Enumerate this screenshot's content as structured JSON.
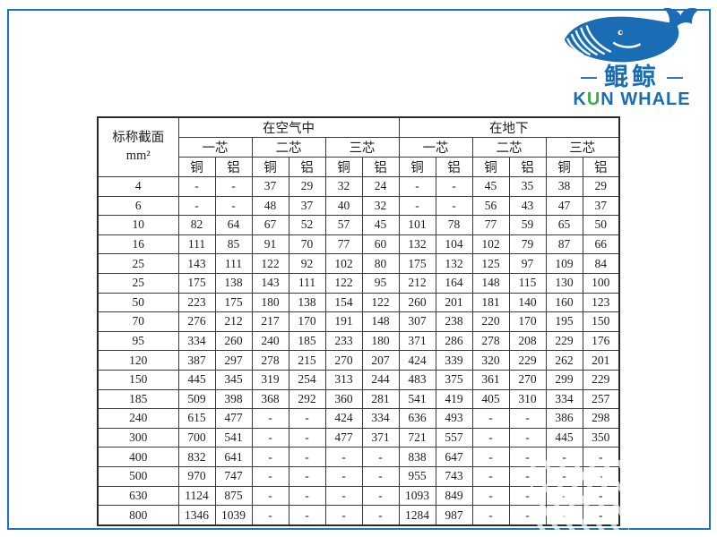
{
  "logo": {
    "cn_name": "鲲鲸",
    "dash_left": "—",
    "dash_right": "—",
    "en_k": "K",
    "en_u": "U",
    "en_rest": "N WHALE",
    "whale_icon": "whale-icon",
    "colors": {
      "blue": "#1a6cb4",
      "green": "#3dab49",
      "frame_blue": "#1e74bc"
    }
  },
  "table": {
    "corner_line1": "标称截面",
    "corner_line2": "mm²",
    "group_headers": [
      "在空气中",
      "在地下"
    ],
    "core_headers": [
      "一芯",
      "二芯",
      "三芯",
      "一芯",
      "二芯",
      "三芯"
    ],
    "material_headers": [
      "铜",
      "铝",
      "铜",
      "铝",
      "铜",
      "铝",
      "铜",
      "铝",
      "铜",
      "铝",
      "铜",
      "铝"
    ],
    "rows": [
      {
        "size": "4",
        "values": [
          "-",
          "-",
          "37",
          "29",
          "32",
          "24",
          "-",
          "-",
          "45",
          "35",
          "38",
          "29"
        ]
      },
      {
        "size": "6",
        "values": [
          "-",
          "-",
          "48",
          "37",
          "40",
          "32",
          "-",
          "-",
          "56",
          "43",
          "47",
          "37"
        ]
      },
      {
        "size": "10",
        "values": [
          "82",
          "64",
          "67",
          "52",
          "57",
          "45",
          "101",
          "78",
          "77",
          "59",
          "65",
          "50"
        ]
      },
      {
        "size": "16",
        "values": [
          "111",
          "85",
          "91",
          "70",
          "77",
          "60",
          "132",
          "104",
          "102",
          "79",
          "87",
          "66"
        ]
      },
      {
        "size": "25",
        "values": [
          "143",
          "111",
          "122",
          "92",
          "102",
          "80",
          "175",
          "132",
          "125",
          "97",
          "109",
          "84"
        ]
      },
      {
        "size": "25",
        "values": [
          "175",
          "138",
          "143",
          "111",
          "122",
          "95",
          "212",
          "164",
          "148",
          "115",
          "130",
          "100"
        ]
      },
      {
        "size": "50",
        "values": [
          "223",
          "175",
          "180",
          "138",
          "154",
          "122",
          "260",
          "201",
          "181",
          "140",
          "160",
          "123"
        ]
      },
      {
        "size": "70",
        "values": [
          "276",
          "212",
          "217",
          "170",
          "191",
          "148",
          "307",
          "238",
          "220",
          "170",
          "195",
          "150"
        ]
      },
      {
        "size": "95",
        "values": [
          "334",
          "260",
          "240",
          "185",
          "233",
          "180",
          "371",
          "286",
          "278",
          "208",
          "229",
          "176"
        ]
      },
      {
        "size": "120",
        "values": [
          "387",
          "297",
          "278",
          "215",
          "270",
          "207",
          "424",
          "339",
          "320",
          "229",
          "262",
          "201"
        ]
      },
      {
        "size": "150",
        "values": [
          "445",
          "345",
          "319",
          "254",
          "313",
          "244",
          "483",
          "375",
          "361",
          "270",
          "299",
          "229"
        ]
      },
      {
        "size": "185",
        "values": [
          "509",
          "398",
          "368",
          "292",
          "360",
          "281",
          "541",
          "419",
          "405",
          "310",
          "334",
          "257"
        ]
      },
      {
        "size": "240",
        "values": [
          "615",
          "477",
          "-",
          "-",
          "424",
          "334",
          "636",
          "493",
          "-",
          "-",
          "386",
          "298"
        ]
      },
      {
        "size": "300",
        "values": [
          "700",
          "541",
          "-",
          "-",
          "477",
          "371",
          "721",
          "557",
          "-",
          "-",
          "445",
          "350"
        ]
      },
      {
        "size": "400",
        "values": [
          "832",
          "641",
          "-",
          "-",
          "-",
          "-",
          "838",
          "647",
          "-",
          "-",
          "-",
          "-"
        ]
      },
      {
        "size": "500",
        "values": [
          "970",
          "747",
          "-",
          "-",
          "-",
          "-",
          "955",
          "743",
          "-",
          "-",
          "-",
          "-"
        ]
      },
      {
        "size": "630",
        "values": [
          "1124",
          "875",
          "-",
          "-",
          "-",
          "-",
          "1093",
          "849",
          "-",
          "-",
          "-",
          "-"
        ]
      },
      {
        "size": "800",
        "values": [
          "1346",
          "1039",
          "-",
          "-",
          "-",
          "-",
          "1284",
          "987",
          "-",
          "-",
          "-",
          "-"
        ]
      }
    ]
  }
}
